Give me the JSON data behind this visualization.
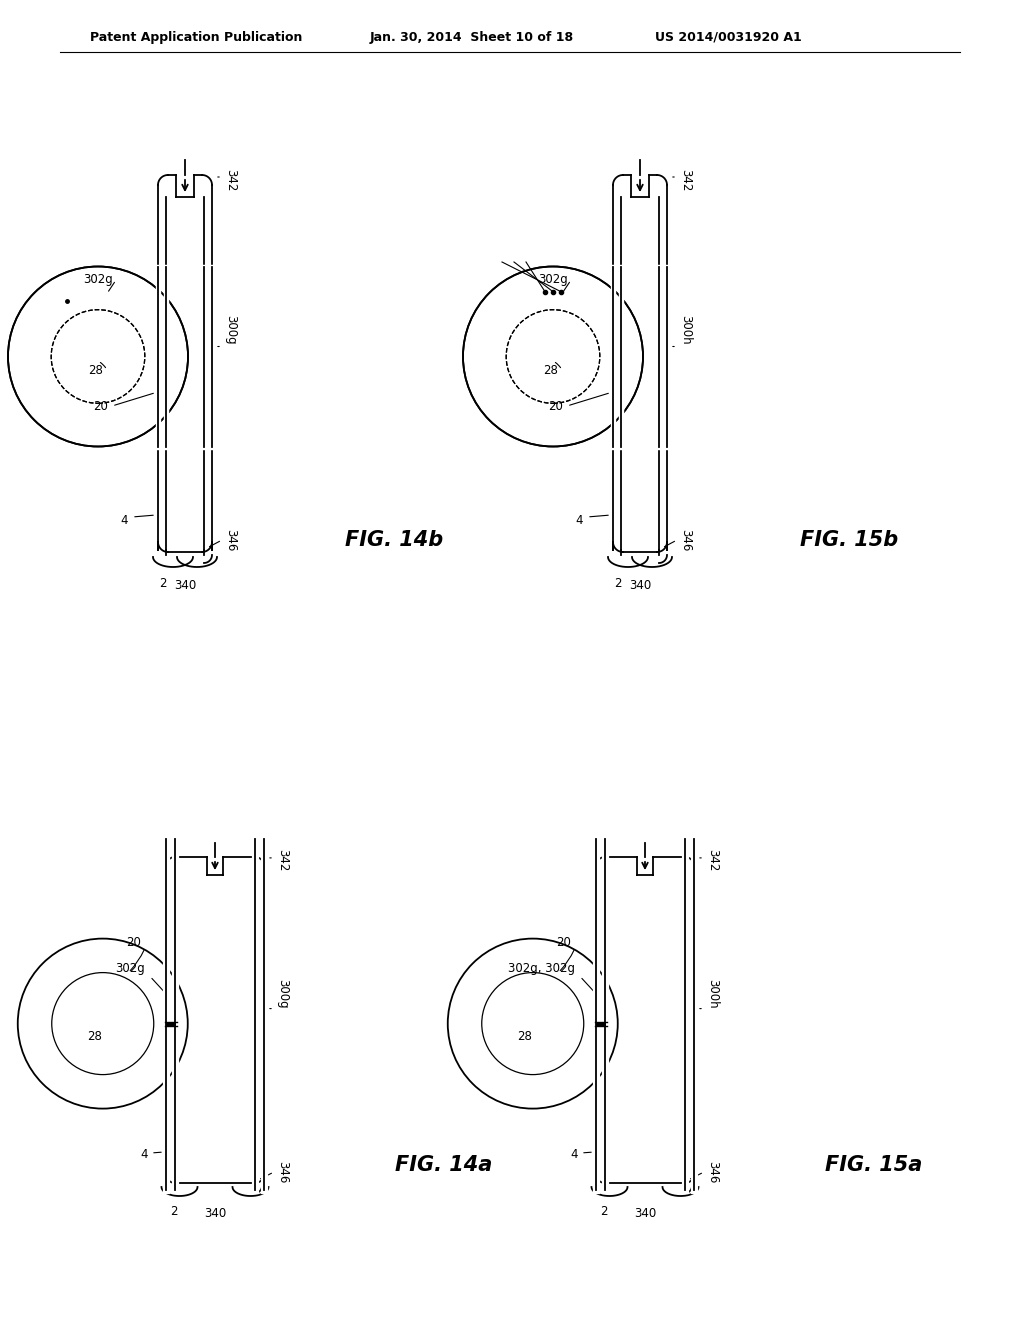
{
  "bg_color": "#ffffff",
  "header_left": "Patent Application Publication",
  "header_mid": "Jan. 30, 2014  Sheet 10 of 18",
  "header_right": "US 2014/0031920 A1",
  "lw": 1.3,
  "fs_label": 8.5,
  "fs_fig": 15
}
